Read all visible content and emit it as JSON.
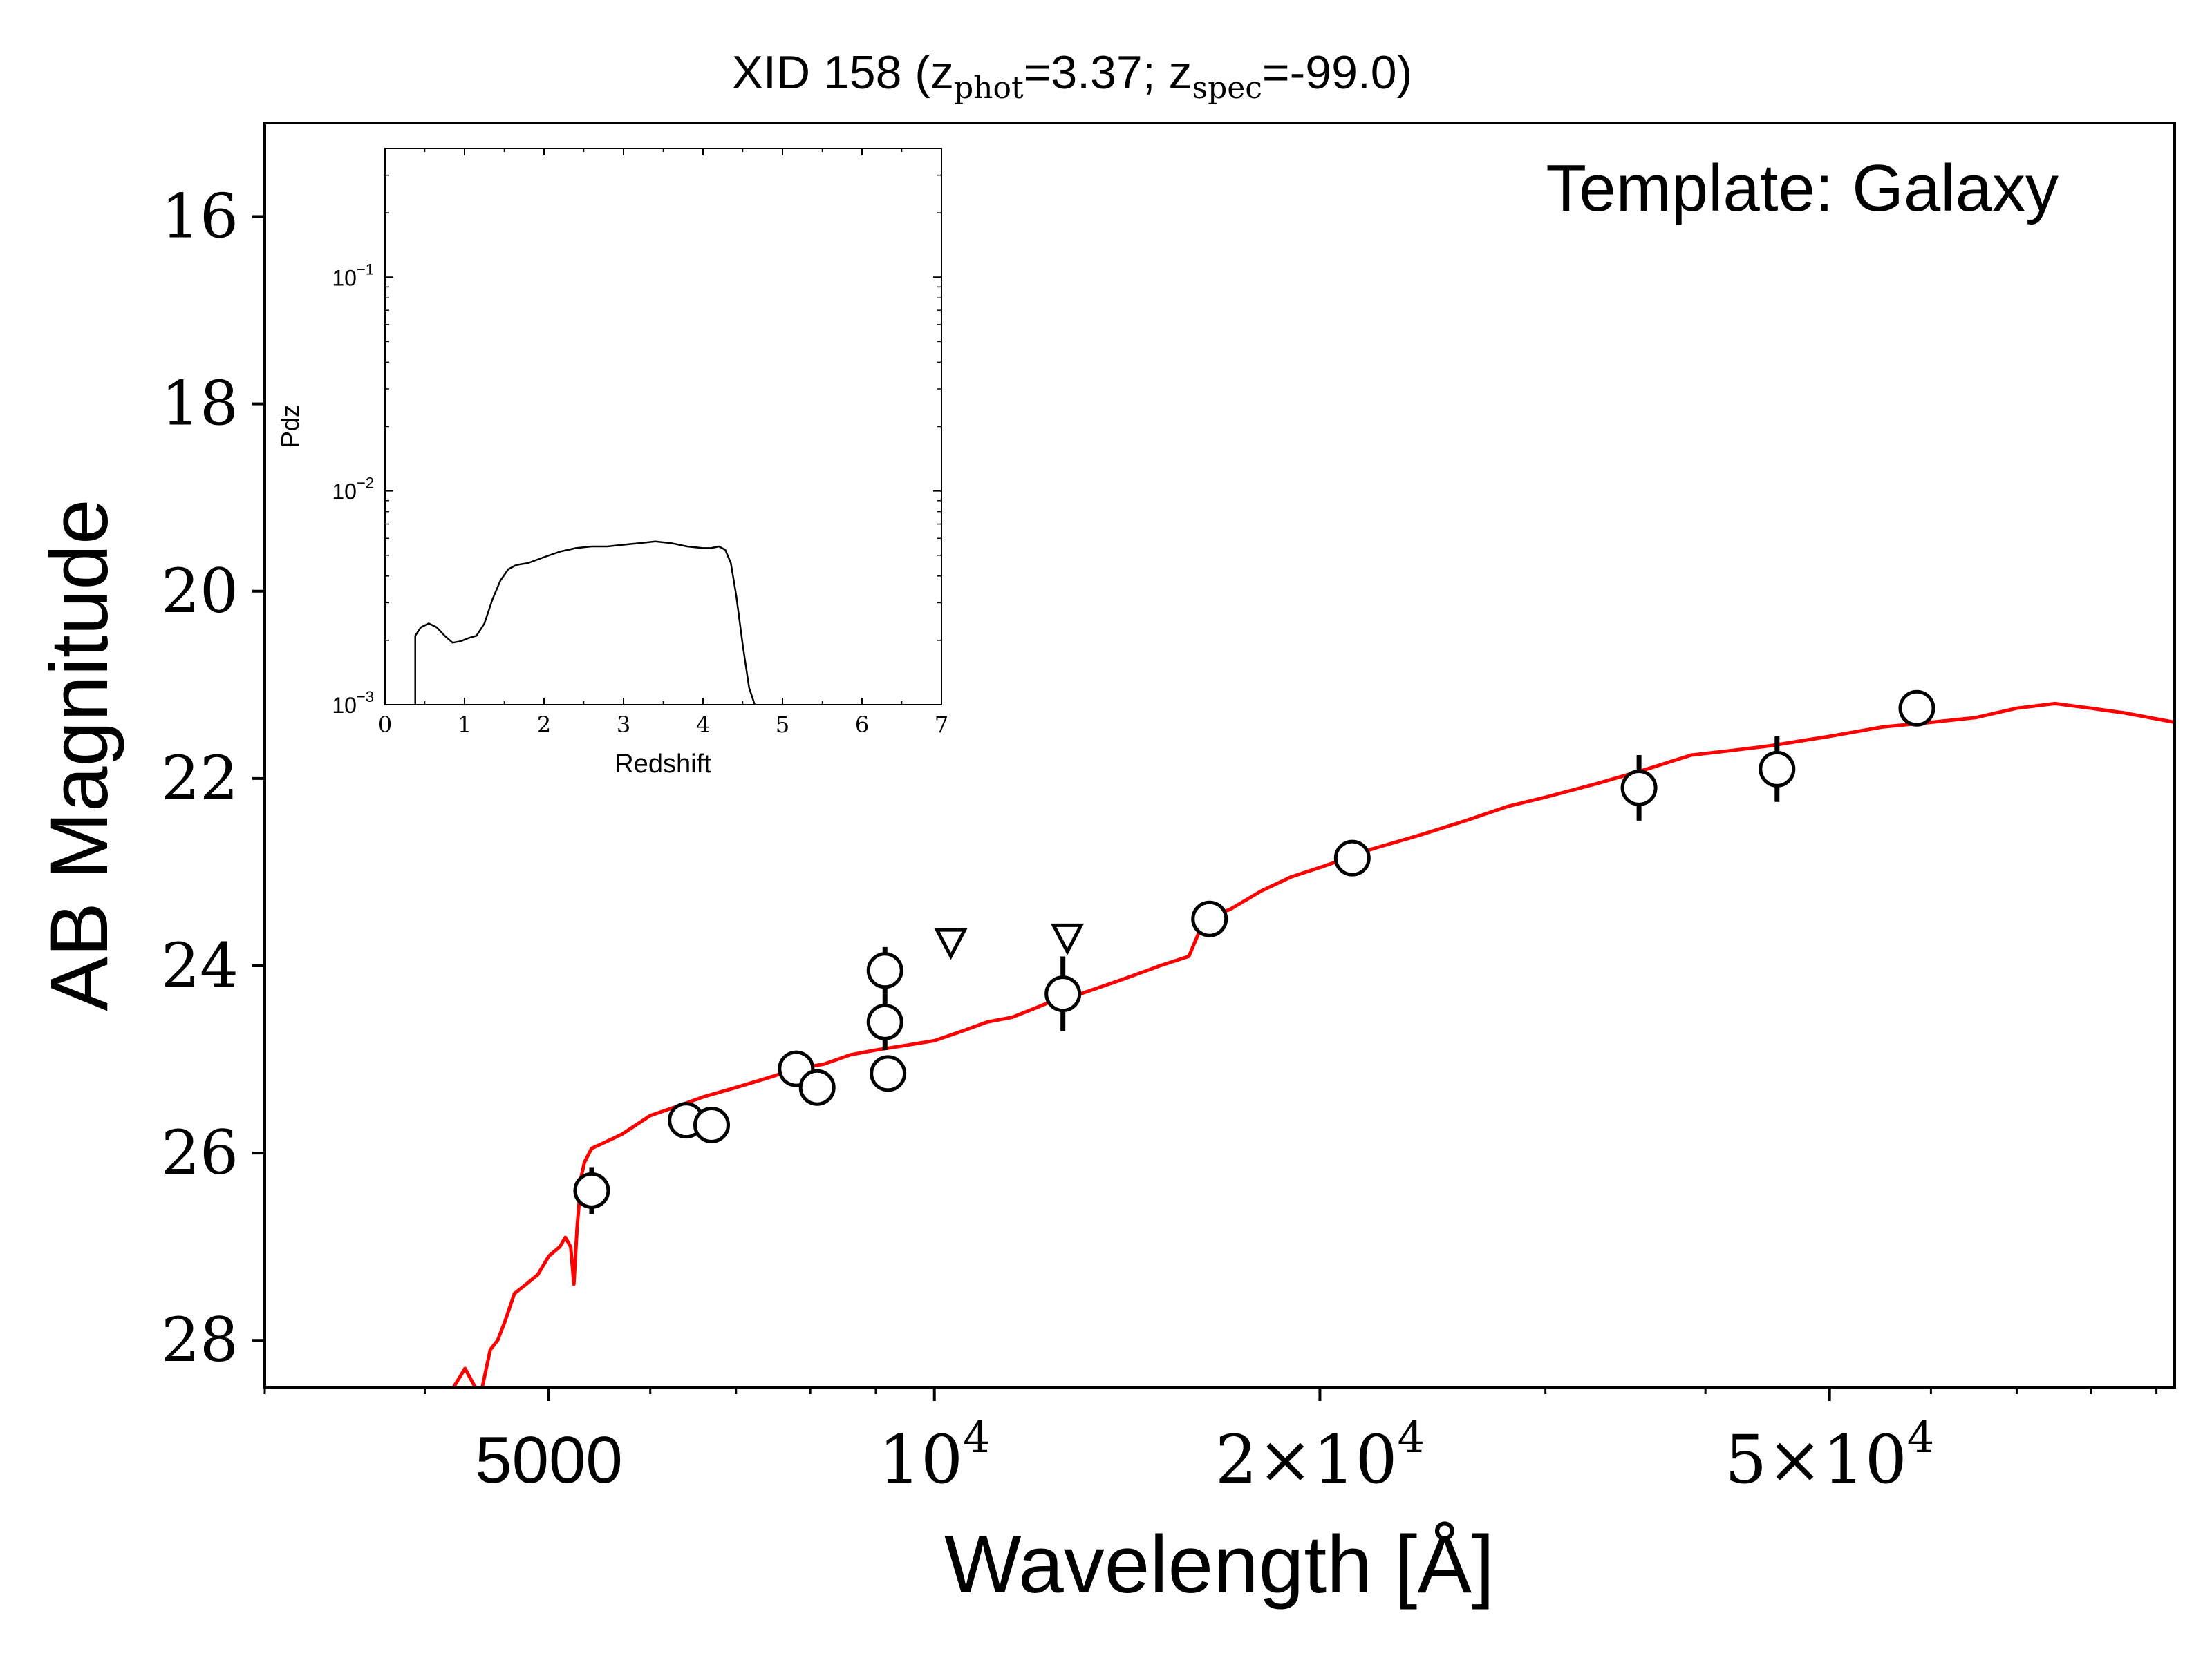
{
  "chart_data": [
    {
      "type": "scatter",
      "title_parts": {
        "prefix": "XID 158 (z",
        "phot_sub": "phot",
        "mid": "=3.37; z",
        "spec_sub": "spec",
        "suffix": "=-99.0)"
      },
      "annotation": "Template: Galaxy",
      "xlabel": "Wavelength [Å]",
      "ylabel": "AB Magnitude",
      "xscale": "log",
      "xlim": [
        3000,
        93000
      ],
      "ylim": [
        28.5,
        15.0
      ],
      "yaxis_inverted": true,
      "x_ticks": [
        {
          "value": 5000,
          "label": "5000",
          "mantissa": "",
          "exponent": ""
        },
        {
          "value": 10000,
          "label": "",
          "mantissa": "10",
          "exponent": "4"
        },
        {
          "value": 20000,
          "label": "",
          "mantissa": "2×10",
          "exponent": "4"
        },
        {
          "value": 50000,
          "label": "",
          "mantissa": "5×10",
          "exponent": "4"
        }
      ],
      "y_ticks": [
        "16",
        "18",
        "20",
        "22",
        "24",
        "26",
        "28"
      ],
      "series": [
        {
          "kind": "line",
          "color": "#ff0000",
          "x": [
            4170,
            4300,
            4420,
            4500,
            4560,
            4620,
            4700,
            4800,
            4900,
            5000,
            5100,
            5150,
            5200,
            5230,
            5260,
            5300,
            5330,
            5400,
            5500,
            5700,
            6000,
            6300,
            6600,
            7000,
            7400,
            7800,
            8200,
            8600,
            9000,
            9500,
            10000,
            10500,
            11000,
            11500,
            12000,
            12500,
            13000,
            14000,
            15000,
            15800,
            16200,
            16600,
            17000,
            17500,
            18000,
            19000,
            20000,
            21000,
            22000,
            24000,
            26000,
            28000,
            30000,
            33000,
            36000,
            39000,
            42000,
            45000,
            50000,
            55000,
            60000,
            65000,
            70000,
            75000,
            80000,
            85000,
            93000
          ],
          "y": [
            28.6,
            28.3,
            28.6,
            28.1,
            28.0,
            27.8,
            27.5,
            27.4,
            27.3,
            27.1,
            27.0,
            26.9,
            27.0,
            27.4,
            26.8,
            26.25,
            26.1,
            25.95,
            25.9,
            25.8,
            25.6,
            25.5,
            25.4,
            25.3,
            25.2,
            25.1,
            25.05,
            24.95,
            24.9,
            24.85,
            24.8,
            24.7,
            24.6,
            24.55,
            24.45,
            24.35,
            24.3,
            24.15,
            24.0,
            23.9,
            23.55,
            23.45,
            23.4,
            23.3,
            23.2,
            23.05,
            22.95,
            22.85,
            22.75,
            22.6,
            22.45,
            22.3,
            22.2,
            22.05,
            21.9,
            21.75,
            21.7,
            21.65,
            21.55,
            21.45,
            21.4,
            21.35,
            21.25,
            21.2,
            21.25,
            21.3,
            21.4
          ]
        },
        {
          "kind": "points",
          "marker": "circle",
          "x": [
            5400,
            6400,
            6700,
            7800,
            8100,
            9150,
            9150,
            9200,
            12600,
            16400,
            21200,
            35500,
            45500,
            58500
          ],
          "y": [
            26.4,
            25.65,
            25.7,
            25.1,
            25.3,
            24.05,
            24.6,
            25.15,
            24.3,
            23.5,
            22.85,
            22.1,
            21.9,
            21.25
          ],
          "yerr": [
            0.25,
            0.1,
            0.1,
            0.05,
            0.08,
            0.25,
            0.3,
            0.15,
            0.4,
            0.15,
            0.08,
            0.35,
            0.35,
            0.05
          ]
        },
        {
          "kind": "upper_limits",
          "marker": "triangle-down",
          "x": [
            10300,
            12700
          ],
          "y": [
            23.75,
            23.7
          ]
        }
      ]
    },
    {
      "type": "line",
      "role": "inset",
      "xlabel": "Redshift",
      "ylabel": "Pdz",
      "xlim": [
        0,
        7
      ],
      "yscale": "log",
      "ylim": [
        0.001,
        0.4
      ],
      "x_ticks": [
        "0",
        "1",
        "2",
        "3",
        "4",
        "5",
        "6",
        "7"
      ],
      "y_ticks": [
        {
          "value": 0.001,
          "mantissa": "10",
          "exponent": "−3"
        },
        {
          "value": 0.01,
          "mantissa": "10",
          "exponent": "−2"
        },
        {
          "value": 0.1,
          "mantissa": "10",
          "exponent": "−1"
        }
      ],
      "series": [
        {
          "color": "#000000",
          "x": [
            0.38,
            0.38,
            0.45,
            0.55,
            0.65,
            0.75,
            0.85,
            0.95,
            1.05,
            1.15,
            1.25,
            1.35,
            1.45,
            1.55,
            1.65,
            1.8,
            2.0,
            2.2,
            2.4,
            2.6,
            2.8,
            3.0,
            3.2,
            3.4,
            3.6,
            3.8,
            4.0,
            4.1,
            4.2,
            4.28,
            4.35,
            4.42,
            4.5,
            4.58,
            4.65
          ],
          "y": [
            0.001,
            0.0021,
            0.0023,
            0.0024,
            0.0023,
            0.0021,
            0.00195,
            0.00198,
            0.00205,
            0.0021,
            0.0024,
            0.0031,
            0.0038,
            0.0043,
            0.0045,
            0.0046,
            0.0049,
            0.0052,
            0.0054,
            0.0055,
            0.0055,
            0.0056,
            0.0057,
            0.0058,
            0.0057,
            0.0055,
            0.0054,
            0.0054,
            0.0055,
            0.0053,
            0.0046,
            0.0032,
            0.0019,
            0.0012,
            0.001
          ]
        }
      ]
    }
  ]
}
